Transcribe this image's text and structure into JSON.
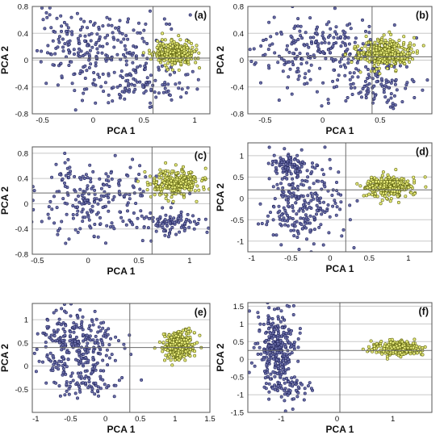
{
  "colors": {
    "blue_fill": "#6b6fa8",
    "blue_edge": "#23265e",
    "yellow_fill": "#e6ea7a",
    "yellow_edge": "#5f6410",
    "grid": "#c8c8c8",
    "cross": "#6a6a6a",
    "frame": "#555555"
  },
  "chart_data": [
    {
      "type": "scatter",
      "tag": "(a)",
      "xlabel": "PCA 1",
      "ylabel": "PCA 2",
      "xlim": [
        -0.6,
        1.15
      ],
      "ylim": [
        -0.8,
        0.8
      ],
      "xticks": [
        -0.5,
        0,
        0.5,
        1
      ],
      "xtick_labels": [
        "-0.5",
        "0",
        "0.5",
        "1"
      ],
      "yticks": [
        -0.8,
        -0.4,
        0,
        0.4,
        0.8
      ],
      "ytick_labels": [
        "-0.8",
        "-0.4",
        "0",
        "0.4",
        "0.8"
      ],
      "vline": 0.59,
      "hline": 0.03,
      "clusters": [
        {
          "group": "blue",
          "n": 160,
          "cx": 0.0,
          "cy": 0.28,
          "sx": 0.33,
          "sy": 0.22,
          "seed": 11
        },
        {
          "group": "blue",
          "n": 120,
          "cx": 0.45,
          "cy": -0.33,
          "sx": 0.25,
          "sy": 0.15,
          "seed": 12
        },
        {
          "group": "blue",
          "n": 60,
          "cx": -0.15,
          "cy": 0.0,
          "sx": 0.25,
          "sy": 0.3,
          "seed": 13
        },
        {
          "group": "yellow",
          "n": 320,
          "cx": 0.8,
          "cy": 0.1,
          "sx": 0.1,
          "sy": 0.09,
          "seed": 14
        }
      ]
    },
    {
      "type": "scatter",
      "tag": "(b)",
      "xlabel": "PCA 1",
      "ylabel": "PCA 2",
      "xlim": [
        -0.65,
        0.95
      ],
      "ylim": [
        -0.8,
        0.8
      ],
      "xticks": [
        -0.5,
        0,
        0.5
      ],
      "xtick_labels": [
        "-0.5",
        "0",
        "0.5"
      ],
      "yticks": [
        -0.8,
        -0.4,
        0,
        0.4,
        0.8
      ],
      "ytick_labels": [
        "-0.8",
        "-0.4",
        "0",
        "0.4",
        "0.8"
      ],
      "vline": 0.43,
      "hline": 0.05,
      "clusters": [
        {
          "group": "blue",
          "n": 170,
          "cx": 0.05,
          "cy": 0.22,
          "sx": 0.3,
          "sy": 0.22,
          "seed": 21
        },
        {
          "group": "blue",
          "n": 110,
          "cx": 0.42,
          "cy": -0.35,
          "sx": 0.2,
          "sy": 0.16,
          "seed": 22
        },
        {
          "group": "blue",
          "n": 50,
          "cx": -0.3,
          "cy": -0.05,
          "sx": 0.2,
          "sy": 0.3,
          "seed": 23
        },
        {
          "group": "yellow",
          "n": 320,
          "cx": 0.53,
          "cy": 0.1,
          "sx": 0.12,
          "sy": 0.1,
          "seed": 24
        }
      ]
    },
    {
      "type": "scatter",
      "tag": "(c)",
      "xlabel": "PCA 1",
      "ylabel": "PCA 2",
      "xlim": [
        -0.55,
        1.2
      ],
      "ylim": [
        -0.8,
        0.9
      ],
      "xticks": [
        -0.5,
        0,
        0.5,
        1
      ],
      "xtick_labels": [
        "-0.5",
        "0",
        "0.5",
        "1"
      ],
      "yticks": [
        -0.8,
        -0.4,
        0,
        0.4,
        0.8
      ],
      "ytick_labels": [
        "-0.8",
        "-0.4",
        "0",
        "0.4",
        "0.8"
      ],
      "vline": 0.63,
      "hline": 0.17,
      "clusters": [
        {
          "group": "blue",
          "n": 170,
          "cx": 0.05,
          "cy": 0.18,
          "sx": 0.33,
          "sy": 0.25,
          "seed": 31
        },
        {
          "group": "blue",
          "n": 110,
          "cx": 0.8,
          "cy": -0.3,
          "sx": 0.25,
          "sy": 0.1,
          "seed": 32
        },
        {
          "group": "blue",
          "n": 50,
          "cx": -0.1,
          "cy": -0.25,
          "sx": 0.3,
          "sy": 0.2,
          "seed": 33
        },
        {
          "group": "yellow",
          "n": 300,
          "cx": 0.85,
          "cy": 0.32,
          "sx": 0.12,
          "sy": 0.1,
          "seed": 34
        }
      ]
    },
    {
      "type": "scatter",
      "tag": "(d)",
      "xlabel": "PCA 1",
      "ylabel": "PCA 2",
      "xlim": [
        -1.05,
        1.3
      ],
      "ylim": [
        -1.25,
        1.3
      ],
      "xticks": [
        -1,
        -0.5,
        0,
        0.5,
        1
      ],
      "xtick_labels": [
        "-1",
        "-0.5",
        "0",
        "0.5",
        "1"
      ],
      "yticks": [
        -1,
        -0.5,
        0,
        0.5,
        1
      ],
      "ytick_labels": [
        "-1",
        "-0.5",
        "0",
        "0.5",
        "1"
      ],
      "vline": 0.2,
      "hline": 0.2,
      "clusters": [
        {
          "group": "blue",
          "n": 90,
          "cx": -0.52,
          "cy": 0.78,
          "sx": 0.1,
          "sy": 0.15,
          "seed": 41
        },
        {
          "group": "blue",
          "n": 230,
          "cx": -0.35,
          "cy": -0.1,
          "sx": 0.25,
          "sy": 0.45,
          "seed": 42
        },
        {
          "group": "yellow",
          "n": 300,
          "cx": 0.75,
          "cy": 0.25,
          "sx": 0.14,
          "sy": 0.13,
          "seed": 43
        }
      ]
    },
    {
      "type": "scatter",
      "tag": "(e)",
      "xlabel": "PCA 1",
      "ylabel": "PCA 2",
      "xlim": [
        -1.05,
        1.5
      ],
      "ylim": [
        -1.0,
        1.35
      ],
      "xticks": [
        -1,
        -0.5,
        0,
        0.5,
        1,
        1.5
      ],
      "xtick_labels": [
        "-1",
        "-0.5",
        "0",
        "0.5",
        "1",
        "1.5"
      ],
      "yticks": [
        -0.5,
        0,
        0.5,
        1
      ],
      "ytick_labels": [
        "-0.5",
        "0",
        "0.5",
        "1"
      ],
      "vline": 0.35,
      "hline": 0.4,
      "clusters": [
        {
          "group": "blue",
          "n": 300,
          "cx": -0.45,
          "cy": 0.35,
          "sx": 0.28,
          "sy": 0.4,
          "seed": 51
        },
        {
          "group": "blue",
          "n": 50,
          "cx": -0.15,
          "cy": -0.4,
          "sx": 0.2,
          "sy": 0.15,
          "seed": 52
        },
        {
          "group": "yellow",
          "n": 300,
          "cx": 1.05,
          "cy": 0.45,
          "sx": 0.1,
          "sy": 0.15,
          "seed": 53
        }
      ]
    },
    {
      "type": "scatter",
      "tag": "(f)",
      "xlabel": "PCA 1",
      "ylabel": "PCA 2",
      "xlim": [
        -1.6,
        1.7
      ],
      "ylim": [
        -1.5,
        1.6
      ],
      "xticks": [
        -1,
        0,
        1
      ],
      "xtick_labels": [
        "-1",
        "0",
        "1"
      ],
      "yticks": [
        -1.5,
        -1,
        -0.5,
        0,
        0.5,
        1,
        1.5
      ],
      "ytick_labels": [
        "-1.5",
        "-1",
        "-0.5",
        "0",
        "0.5",
        "1",
        "1.5"
      ],
      "vline": 0.05,
      "hline": 0.25,
      "clusters": [
        {
          "group": "blue",
          "n": 300,
          "cx": -1.1,
          "cy": 0.25,
          "sx": 0.18,
          "sy": 0.55,
          "seed": 61
        },
        {
          "group": "blue",
          "n": 50,
          "cx": -0.85,
          "cy": -0.8,
          "sx": 0.2,
          "sy": 0.2,
          "seed": 62
        },
        {
          "group": "yellow",
          "n": 300,
          "cx": 1.1,
          "cy": 0.3,
          "sx": 0.2,
          "sy": 0.1,
          "seed": 63
        }
      ]
    }
  ]
}
